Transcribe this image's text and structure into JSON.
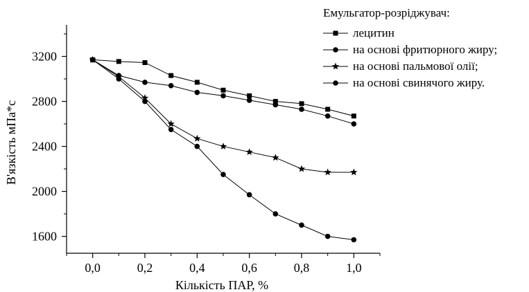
{
  "chart_data": {
    "type": "line",
    "title": "",
    "xlabel": "Кількість ПАР, %",
    "ylabel": "В'язкість мПа*с",
    "xlim": [
      -0.1,
      1.1
    ],
    "ylim": [
      1450,
      3480
    ],
    "x_ticks": [
      0.0,
      0.2,
      0.4,
      0.6,
      0.8,
      1.0
    ],
    "x_tick_labels": [
      "0,0",
      "0,2",
      "0,4",
      "0,6",
      "0,8",
      "1,0"
    ],
    "y_ticks": [
      1600,
      2000,
      2400,
      2800,
      3200
    ],
    "y_tick_labels": [
      "1600",
      "2000",
      "2400",
      "2800",
      "3200"
    ],
    "grid": false,
    "legend_title": "Емульгатор-розріджувач:",
    "legend_position": "top-right",
    "x": [
      0.0,
      0.1,
      0.2,
      0.3,
      0.4,
      0.5,
      0.6,
      0.7,
      0.8,
      0.9,
      1.0
    ],
    "series": [
      {
        "name": "лецитин",
        "marker": "square",
        "values": [
          3170,
          3155,
          3145,
          3030,
          2970,
          2900,
          2850,
          2800,
          2780,
          2730,
          2670
        ]
      },
      {
        "name": "на основі фритюрного жиру;",
        "marker": "circle",
        "values": [
          3170,
          3030,
          2970,
          2940,
          2880,
          2850,
          2810,
          2770,
          2730,
          2670,
          2600
        ]
      },
      {
        "name": "на основі пальмової олії;",
        "marker": "star",
        "values": [
          3170,
          3020,
          2830,
          2600,
          2470,
          2400,
          2350,
          2300,
          2200,
          2170,
          2170
        ]
      },
      {
        "name": "на основі свинячого жиру.",
        "marker": "circle",
        "values": [
          3170,
          3000,
          2800,
          2550,
          2400,
          2150,
          1970,
          1800,
          1700,
          1600,
          1570
        ]
      }
    ]
  }
}
